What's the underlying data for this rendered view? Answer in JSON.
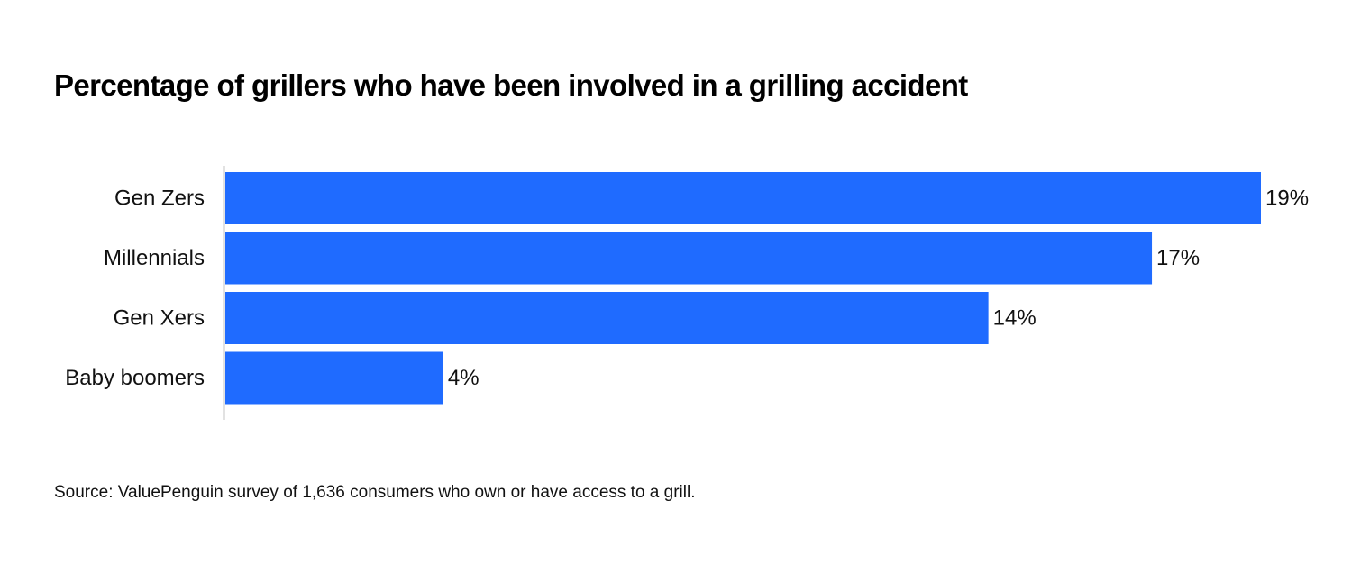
{
  "chart_data": {
    "type": "bar",
    "orientation": "horizontal",
    "title": "Percentage of grillers who have been involved in a grilling accident",
    "categories": [
      "Gen Zers",
      "Millennials",
      "Gen Xers",
      "Baby boomers"
    ],
    "values": [
      19,
      17,
      14,
      4
    ],
    "value_labels": [
      "19%",
      "17%",
      "14%",
      "4%"
    ],
    "unit": "%",
    "bar_color": "#1F6BFF",
    "grid": false,
    "legend": "none",
    "xlim": [
      0,
      19
    ]
  },
  "source": "Source: ValuePenguin survey of 1,636 consumers who own or have access to a grill."
}
